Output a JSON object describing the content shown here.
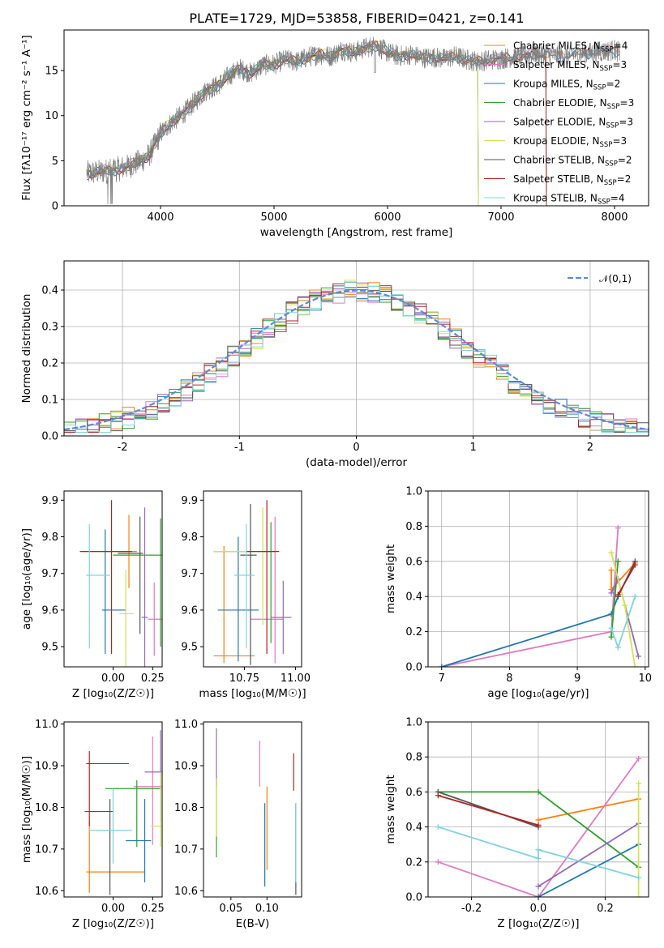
{
  "title": "PLATE=1729, MJD=53858, FIBERID=0421, z=0.141",
  "colors": [
    "#ff7f0e",
    "#e377c2",
    "#1f77b4",
    "#2ca02c",
    "#9467bd",
    "#d4e157",
    "#555555",
    "#b22222",
    "#7fd3e0"
  ],
  "chart_data": [
    {
      "id": "spectrum",
      "type": "line",
      "xlabel": "wavelength [Angstrom, rest frame]",
      "ylabel": "Flux [fλ10⁻¹⁷ erg cm⁻² s⁻¹ A⁻¹]",
      "xlim": [
        3150,
        8300
      ],
      "ylim": [
        0,
        19.5
      ],
      "xticks": [
        4000,
        5000,
        6000,
        7000,
        8000
      ],
      "yticks": [
        0,
        5,
        10,
        15
      ],
      "legend": "top-right",
      "data_anchor_x": [
        3350,
        3500,
        3600,
        3700,
        3800,
        3900,
        4000,
        4100,
        4200,
        4300,
        4400,
        4500,
        4600,
        4700,
        4800,
        4900,
        5000,
        5100,
        5200,
        5300,
        5400,
        5500,
        5600,
        5700,
        5800,
        5900,
        6000,
        6100,
        6200,
        6300,
        6400,
        6500,
        6600,
        6700,
        6800,
        6900,
        7000,
        7100,
        7200,
        7300,
        7400,
        7500,
        7600,
        7700,
        7800,
        7900,
        8000,
        8050
      ],
      "data_anchor_y": [
        3.6,
        3.8,
        4.0,
        4.3,
        4.8,
        5.6,
        8.0,
        9.3,
        10.2,
        11.5,
        12.8,
        13.3,
        14.4,
        15.2,
        14.7,
        15.6,
        15.7,
        16.2,
        16.0,
        16.5,
        16.8,
        16.6,
        17.3,
        17.0,
        17.5,
        17.8,
        17.0,
        16.6,
        16.8,
        16.4,
        16.5,
        16.3,
        16.6,
        16.2,
        16.0,
        16.2,
        16.3,
        16.5,
        16.6,
        16.9,
        16.8,
        16.6,
        16.7,
        16.9,
        17.0,
        17.1,
        17.3,
        17.0
      ],
      "series": [
        {
          "name": "Chabrier MILES, N_SSP=4",
          "color": "#ff7f0e",
          "xmax": 8050,
          "offset": 0.1
        },
        {
          "name": "Salpeter MILES, N_SSP=3",
          "color": "#e377c2",
          "xmax": 8050,
          "offset": 0.2
        },
        {
          "name": "Kroupa MILES, N_SSP=2",
          "color": "#1f77b4",
          "xmax": 8050,
          "offset": -0.15
        },
        {
          "name": "Chabrier ELODIE, N_SSP=3",
          "color": "#2ca02c",
          "xmax": 6800,
          "offset": 0.05
        },
        {
          "name": "Salpeter ELODIE, N_SSP=3",
          "color": "#9467bd",
          "xmax": 6800,
          "offset": -0.05
        },
        {
          "name": "Kroupa ELODIE, N_SSP=3",
          "color": "#d4e157",
          "xmax": 6800,
          "offset": 0.15
        },
        {
          "name": "Chabrier STELIB, N_SSP=2",
          "color": "#555555",
          "xmax": 7400,
          "offset": 0.0
        },
        {
          "name": "Salpeter STELIB, N_SSP=2",
          "color": "#b22222",
          "xmax": 7400,
          "offset": -0.1
        },
        {
          "name": "Kroupa STELIB, N_SSP=4",
          "color": "#7fd3e0",
          "xmax": 8050,
          "offset": 0.25
        }
      ],
      "observed_color": "#808080"
    },
    {
      "id": "residuals",
      "type": "bar",
      "xlabel": "(data-model)/error",
      "ylabel": "Normed distribution",
      "xlim": [
        -2.5,
        2.5
      ],
      "ylim": [
        0,
        0.48
      ],
      "xticks": [
        -2,
        -1,
        0,
        1,
        2
      ],
      "yticks": [
        0.0,
        0.1,
        0.2,
        0.3,
        0.4
      ],
      "grid": true,
      "legend": "top-right",
      "legend_label": "𝒩(0,1)",
      "gaussian_color": "#5b8bd6",
      "bin_width": 0.1
    },
    {
      "id": "age_vs_Z",
      "type": "scatter",
      "xlabel": "Z [log₁₀(Z/Z☉)]",
      "ylabel": "age  [log₁₀(age/yr)]",
      "xlim": [
        -0.31,
        0.31
      ],
      "ylim": [
        9.445,
        9.925
      ],
      "xticks": [
        0.0,
        0.25
      ],
      "yticks": [
        9.5,
        9.6,
        9.7,
        9.8,
        9.9
      ],
      "xcenters": [
        -0.05,
        0.05,
        0.08,
        0.12,
        0.18,
        0.22,
        0.28,
        0.3,
        0.26
      ],
      "ycenters": [
        9.76,
        9.76,
        9.475,
        9.58,
        9.58,
        9.6,
        9.75,
        9.69,
        9.755
      ]
    },
    {
      "id": "age_vs_mass",
      "type": "scatter",
      "xlabel": "mass [log₁₀(M/M☉)]",
      "ylabel": "",
      "xlim": [
        10.55,
        11.03
      ],
      "ylim": [
        9.445,
        9.925
      ],
      "xticks": [
        10.75,
        11.0
      ],
      "yticks": [
        9.5,
        9.6,
        9.7,
        9.8,
        9.9
      ]
    },
    {
      "id": "weight_vs_age",
      "type": "line",
      "xlabel": "age  [log₁₀(age/yr)]",
      "ylabel": "mass weight",
      "xlim": [
        6.8,
        10.05
      ],
      "ylim": [
        0,
        1.0
      ],
      "xticks": [
        7,
        8,
        9,
        10
      ],
      "yticks": [
        0.0,
        0.2,
        0.4,
        0.6,
        0.8,
        1.0
      ],
      "grid": true
    },
    {
      "id": "mass_vs_Z",
      "type": "scatter",
      "xlabel": "Z [log₁₀(Z/Z☉)]",
      "ylabel": "mass [log₁₀(M/M☉)]",
      "xlim": [
        -0.31,
        0.31
      ],
      "ylim": [
        10.585,
        11.005
      ],
      "xticks": [
        0.0,
        0.25
      ],
      "yticks": [
        10.6,
        10.7,
        10.8,
        10.9,
        11.0
      ]
    },
    {
      "id": "mass_vs_ebv",
      "type": "scatter",
      "xlabel": "E(B-V)",
      "ylabel": "",
      "xlim": [
        0.012,
        0.148
      ],
      "ylim": [
        10.585,
        11.005
      ],
      "xticks": [
        0.05,
        0.1
      ],
      "yticks": [
        10.6,
        10.7,
        10.8,
        10.9,
        11.0
      ]
    },
    {
      "id": "weight_vs_Z",
      "type": "line",
      "xlabel": "Z [log₁₀(Z/Z☉)]",
      "ylabel": "mass weight",
      "xlim": [
        -0.33,
        0.33
      ],
      "ylim": [
        0,
        1.0
      ],
      "xticks": [
        -0.2,
        0.0,
        0.2
      ],
      "yticks": [
        0.0,
        0.2,
        0.4,
        0.6,
        0.8,
        1.0
      ],
      "grid": true
    }
  ]
}
